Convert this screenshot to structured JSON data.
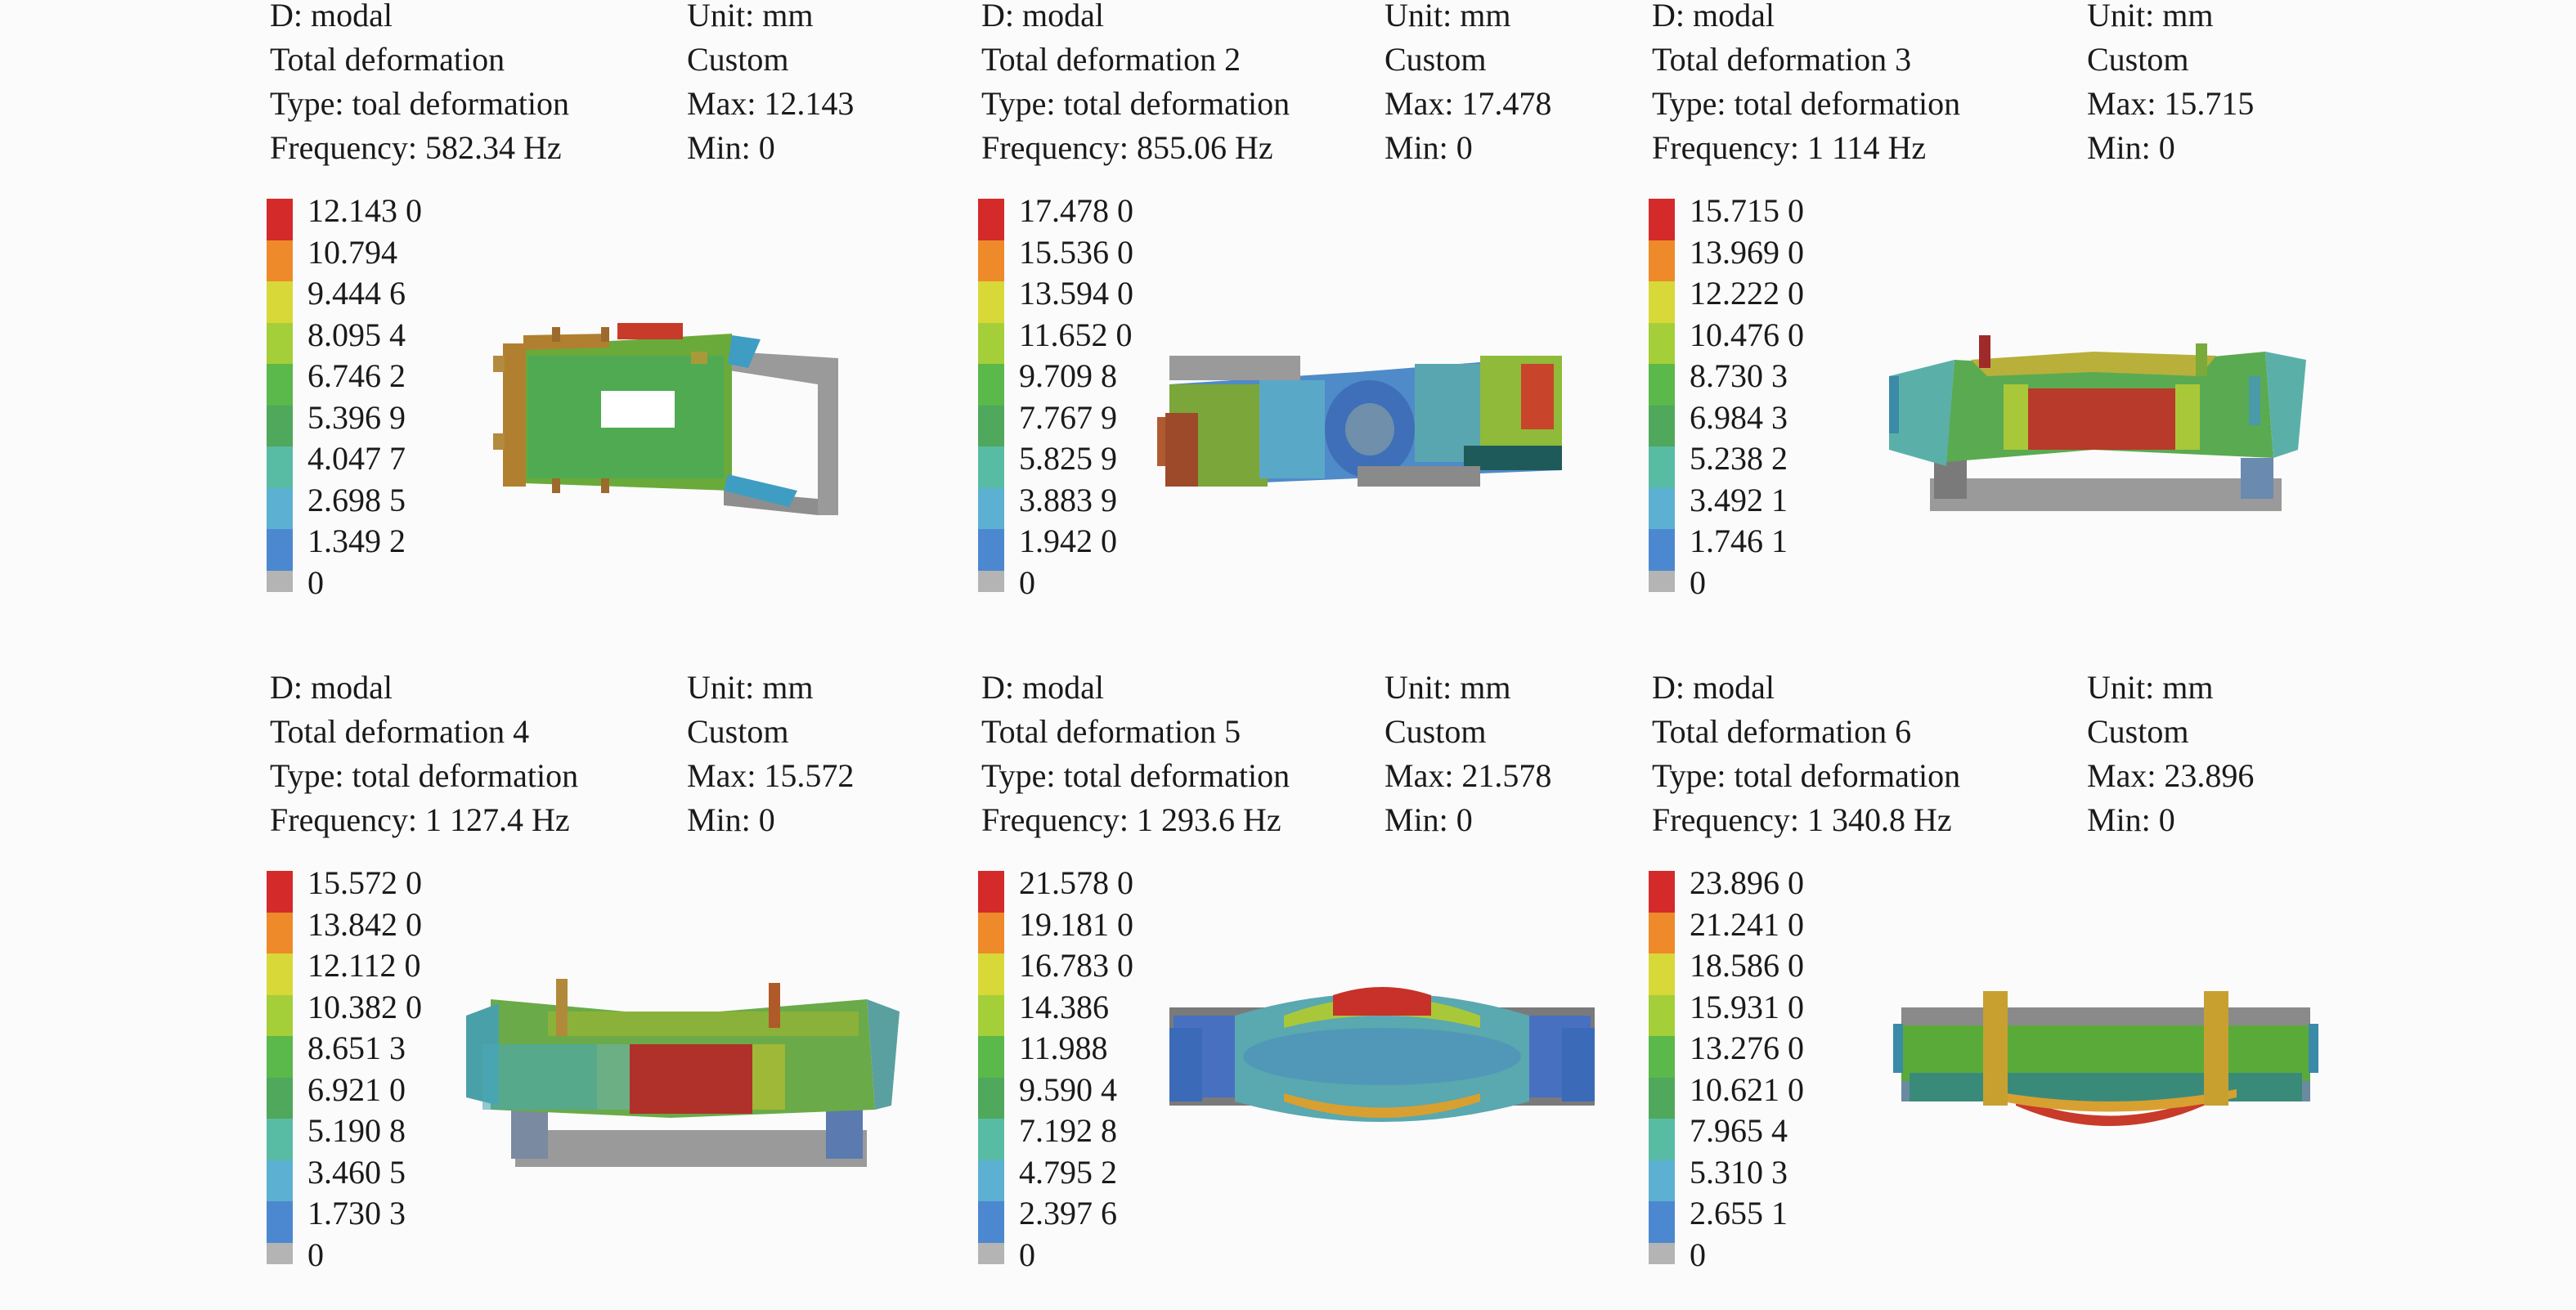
{
  "legend_colors": [
    "#d42a2a",
    "#ee8a2a",
    "#d8d838",
    "#a4cf38",
    "#5bb84a",
    "#4fa85c",
    "#58bca4",
    "#5cb0d2",
    "#4c88d0",
    "#b4b4b4"
  ],
  "panels": [
    {
      "analysis": "D: modal",
      "result": "Total deformation",
      "type": "Type: toal deformation",
      "frequency": "Frequency: 582.34 Hz",
      "unit": "Unit: mm",
      "mode": "Custom",
      "max": "Max: 12.143",
      "min": "Min: 0",
      "legend": [
        "12.143 0",
        "10.794",
        "9.444 6",
        "8.095 4",
        "6.746 2",
        "5.396 9",
        "4.047 7",
        "2.698 5",
        "1.349 2",
        "0"
      ]
    },
    {
      "analysis": "D: modal",
      "result": "Total deformation 2",
      "type": "Type: total deformation",
      "frequency": "Frequency: 855.06 Hz",
      "unit": "Unit: mm",
      "mode": "Custom",
      "max": "Max: 17.478",
      "min": "Min: 0",
      "legend": [
        "17.478 0",
        "15.536 0",
        "13.594 0",
        "11.652 0",
        "9.709 8",
        "7.767 9",
        "5.825 9",
        "3.883 9",
        "1.942 0",
        "0"
      ]
    },
    {
      "analysis": "D: modal",
      "result": "Total deformation 3",
      "type": "Type: total deformation",
      "frequency": "Frequency: 1 114 Hz",
      "unit": "Unit: mm",
      "mode": "Custom",
      "max": "Max: 15.715",
      "min": "Min: 0",
      "legend": [
        "15.715 0",
        "13.969 0",
        "12.222 0",
        "10.476 0",
        "8.730 3",
        "6.984 3",
        "5.238 2",
        "3.492 1",
        "1.746 1",
        "0"
      ]
    },
    {
      "analysis": "D: modal",
      "result": "Total deformation 4",
      "type": "Type: total deformation",
      "frequency": "Frequency: 1 127.4 Hz",
      "unit": "Unit: mm",
      "mode": "Custom",
      "max": "Max: 15.572",
      "min": "Min: 0",
      "legend": [
        "15.572 0",
        "13.842 0",
        "12.112 0",
        "10.382 0",
        "8.651 3",
        "6.921 0",
        "5.190 8",
        "3.460 5",
        "1.730 3",
        "0"
      ]
    },
    {
      "analysis": "D: modal",
      "result": "Total deformation 5",
      "type": "Type: total deformation",
      "frequency": "Frequency: 1 293.6 Hz",
      "unit": "Unit: mm",
      "mode": "Custom",
      "max": "Max: 21.578",
      "min": "Min: 0",
      "legend": [
        "21.578 0",
        "19.181 0",
        "16.783 0",
        "14.386",
        "11.988",
        "9.590 4",
        "7.192 8",
        "4.795 2",
        "2.397 6",
        "0"
      ]
    },
    {
      "analysis": "D: modal",
      "result": "Total deformation 6",
      "type": "Type: total deformation",
      "frequency": "Frequency: 1 340.8 Hz",
      "unit": "Unit: mm",
      "mode": "Custom",
      "max": "Max: 23.896",
      "min": "Min: 0",
      "legend": [
        "23.896 0",
        "21.241 0",
        "18.586 0",
        "15.931 0",
        "13.276 0",
        "10.621 0",
        "7.965 4",
        "5.310 3",
        "2.655 1",
        "0"
      ]
    }
  ]
}
